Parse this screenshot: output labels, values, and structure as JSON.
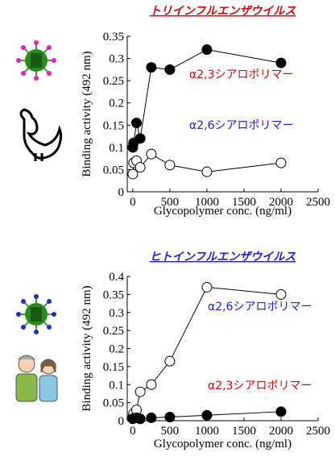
{
  "chart_data": [
    {
      "type": "line",
      "title": "トリインフルエンザウイルス",
      "title_color": "#e00000",
      "x_label": "Glycopolymer conc. (ng/ml)",
      "y_label": "Binding activity (492 nm)",
      "xlim": [
        -75,
        2500
      ],
      "xticks": [
        0,
        500,
        1000,
        1500,
        2000,
        2500
      ],
      "ylim": [
        0,
        0.35
      ],
      "yticks": [
        0,
        0.05,
        0.1,
        0.15,
        0.2,
        0.25,
        0.3,
        0.35
      ],
      "series": [
        {
          "name": "α2,3シアロポリマー",
          "color": "#000000",
          "label_color": "#e00000",
          "marker_fill": "#000000",
          "x": [
            0,
            10,
            50,
            100,
            250,
            500,
            1000,
            2000
          ],
          "values": [
            0.1,
            0.11,
            0.155,
            0.12,
            0.28,
            0.275,
            0.32,
            0.29
          ]
        },
        {
          "name": "α2,6シアロポリマー",
          "color": "#000000",
          "label_color": "#2020e0",
          "marker_fill": "#ffffff",
          "x": [
            0,
            10,
            50,
            100,
            250,
            500,
            1000,
            2000
          ],
          "values": [
            0.04,
            0.065,
            0.07,
            0.055,
            0.085,
            0.06,
            0.045,
            0.065
          ]
        }
      ]
    },
    {
      "type": "line",
      "title": "ヒトインフルエンザウイルス",
      "title_color": "#2020e0",
      "x_label": "Glycopolymer conc. (ng/ml)",
      "y_label": "Binding activity (492 nm)",
      "xlim": [
        -75,
        2500
      ],
      "xticks": [
        0,
        500,
        1000,
        1500,
        2000,
        2500
      ],
      "ylim": [
        0,
        0.4
      ],
      "yticks": [
        0,
        0.05,
        0.1,
        0.15,
        0.2,
        0.25,
        0.3,
        0.35,
        0.4
      ],
      "series": [
        {
          "name": "α2,6シアロポリマー",
          "color": "#000000",
          "label_color": "#2020e0",
          "marker_fill": "#ffffff",
          "x": [
            0,
            10,
            50,
            100,
            250,
            500,
            1000,
            2000
          ],
          "values": [
            0.01,
            0.02,
            0.03,
            0.08,
            0.1,
            0.165,
            0.37,
            0.35
          ]
        },
        {
          "name": "α2,3シアロポリマー",
          "color": "#000000",
          "label_color": "#e00000",
          "marker_fill": "#000000",
          "x": [
            0,
            10,
            50,
            100,
            250,
            500,
            1000,
            2000
          ],
          "values": [
            0.005,
            0.006,
            0.008,
            0.005,
            0.008,
            0.01,
            0.015,
            0.025
          ]
        }
      ]
    }
  ]
}
